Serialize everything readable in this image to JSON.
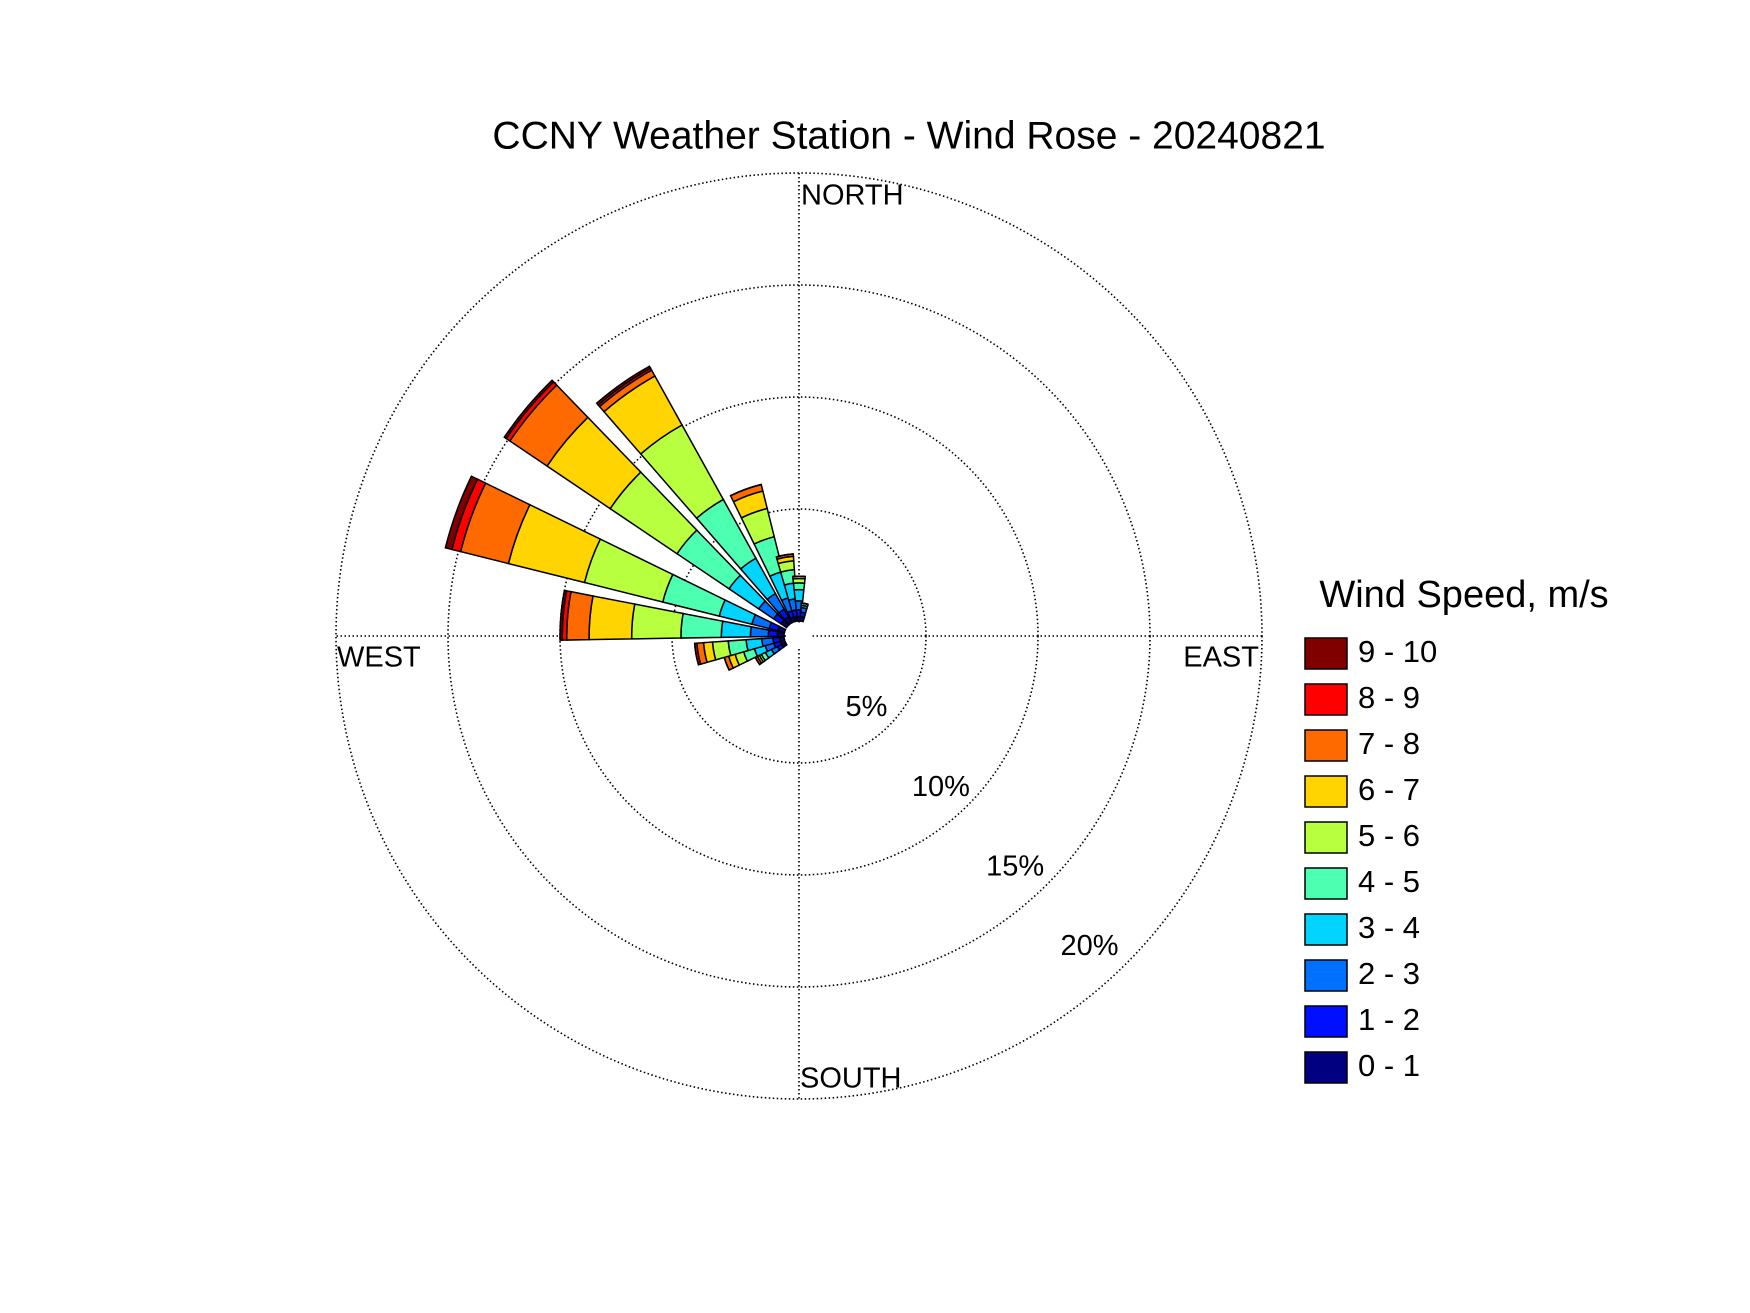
{
  "chart_data": {
    "type": "windrose",
    "title": "CCNY Weather Station - Wind Rose - 20240821",
    "compass_labels": {
      "north": "NORTH",
      "east": "EAST",
      "south": "SOUTH",
      "west": "WEST"
    },
    "legend_title": "Wind Speed, m/s",
    "directions": [
      240,
      250,
      260,
      275,
      290,
      310,
      325,
      340,
      350,
      0,
      10
    ],
    "sector_width": 12,
    "rlim": [
      0,
      20
    ],
    "rticks": [
      {
        "value": 5,
        "label": "5%"
      },
      {
        "value": 10,
        "label": "10%"
      },
      {
        "value": 15,
        "label": "15%"
      },
      {
        "value": 20,
        "label": "20%"
      }
    ],
    "grid": true,
    "series": [
      {
        "name": "0 - 1",
        "color": "#000080",
        "values": [
          0.2,
          0.2,
          0.2,
          0.3,
          0.3,
          0.3,
          0.3,
          0.2,
          0.2,
          0.2,
          0.2
        ]
      },
      {
        "name": "1 - 2",
        "color": "#0010ff",
        "values": [
          0.2,
          0.3,
          0.3,
          0.4,
          0.4,
          0.4,
          0.4,
          0.3,
          0.3,
          0.3,
          0.2
        ]
      },
      {
        "name": "2 - 3",
        "color": "#0070ff",
        "values": [
          0.3,
          0.4,
          0.5,
          0.8,
          0.8,
          0.8,
          0.8,
          0.6,
          0.5,
          0.4,
          0.2
        ]
      },
      {
        "name": "3 - 4",
        "color": "#00d4ff",
        "values": [
          0.3,
          0.5,
          0.7,
          1.3,
          1.5,
          1.6,
          1.8,
          1.2,
          0.7,
          0.5,
          0.1
        ]
      },
      {
        "name": "4 - 5",
        "color": "#4dffb0",
        "values": [
          0.2,
          0.5,
          0.8,
          1.8,
          2.6,
          2.8,
          3.0,
          1.6,
          0.6,
          0.3,
          0.1
        ]
      },
      {
        "name": "5 - 6",
        "color": "#b8ff40",
        "values": [
          0.1,
          0.4,
          0.7,
          2.2,
          3.6,
          3.6,
          3.8,
          1.3,
          0.4,
          0.2,
          0
        ]
      },
      {
        "name": "6 - 7",
        "color": "#ffd400",
        "values": [
          0.1,
          0.3,
          0.4,
          1.9,
          3.5,
          3.4,
          2.5,
          0.8,
          0.2,
          0.1,
          0
        ]
      },
      {
        "name": "7 - 8",
        "color": "#ff6a00",
        "values": [
          0.1,
          0.2,
          0.3,
          1.0,
          2.2,
          2.0,
          0.3,
          0.3,
          0.1,
          0,
          0
        ]
      },
      {
        "name": "8 - 9",
        "color": "#ff0000",
        "values": [
          0,
          0,
          0.1,
          0.2,
          0.4,
          0.2,
          0.1,
          0,
          0,
          0,
          0
        ]
      },
      {
        "name": "9 - 10",
        "color": "#800000",
        "values": [
          0,
          0,
          0,
          0.1,
          0.3,
          0.1,
          0.1,
          0,
          0,
          0,
          0
        ]
      }
    ]
  }
}
